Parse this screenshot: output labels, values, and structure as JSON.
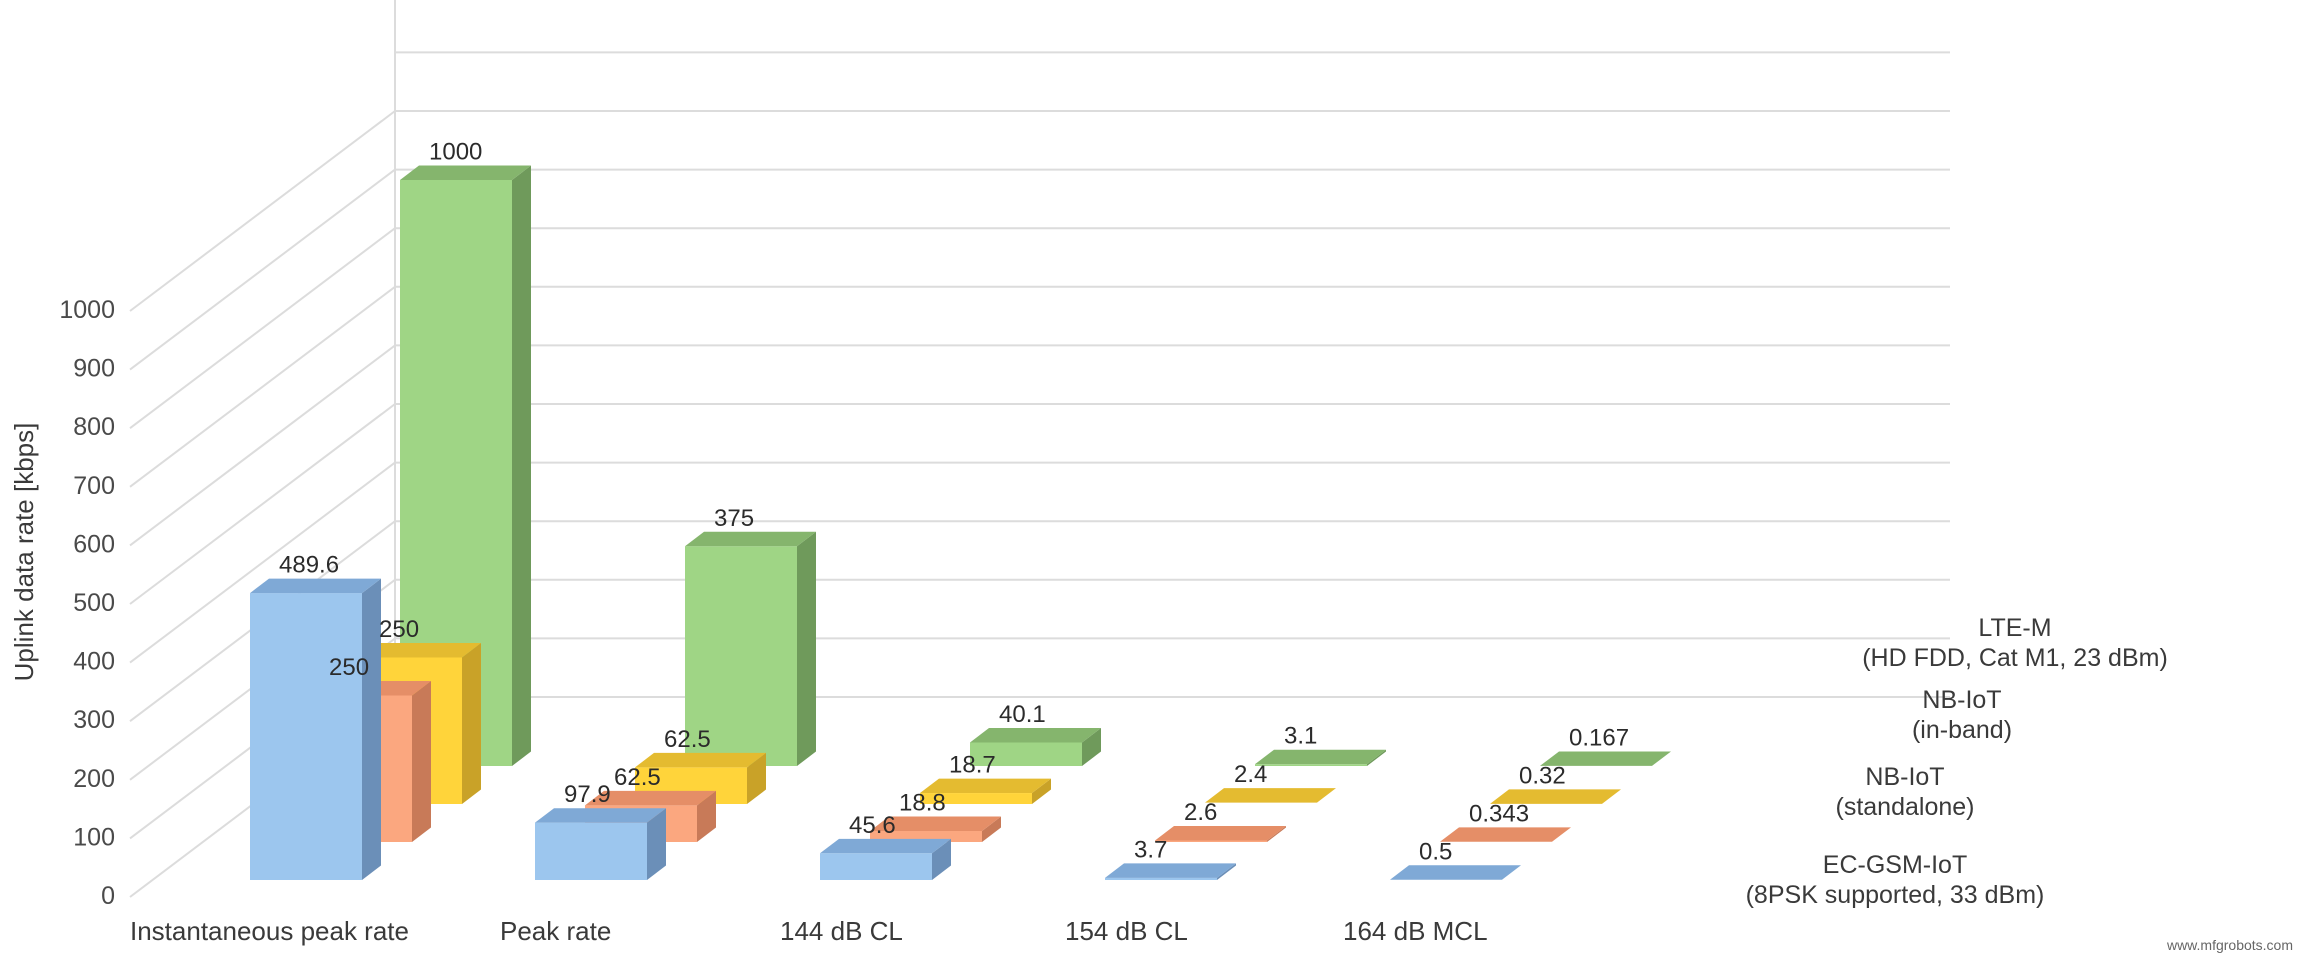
{
  "chart_data": {
    "type": "bar",
    "ylabel": "Uplink data rate [kbps]",
    "ylim": [
      0,
      1000
    ],
    "yticks": [
      "0",
      "100",
      "200",
      "300",
      "400",
      "500",
      "600",
      "700",
      "800",
      "900",
      "1000"
    ],
    "grid": true,
    "categories": [
      "Instantaneous peak rate",
      "Peak rate",
      "144 dB CL",
      "154 dB CL",
      "164 dB MCL"
    ],
    "series": [
      {
        "name_lines": [
          "EC-GSM-IoT",
          "(8PSK supported, 33 dBm)"
        ],
        "values": [
          489.6,
          97.9,
          45.6,
          3.7,
          0.5
        ],
        "labels": [
          "489.6",
          "97.9",
          "45.6",
          "3.7",
          "0.5"
        ]
      },
      {
        "name_lines": [
          "NB-IoT",
          "(standalone)"
        ],
        "values": [
          250,
          62.5,
          18.8,
          2.6,
          0.343
        ],
        "labels": [
          "250",
          "62.5",
          "18.8",
          "2.6",
          "0.343"
        ]
      },
      {
        "name_lines": [
          "NB-IoT",
          "(in-band)"
        ],
        "values": [
          250,
          62.5,
          18.7,
          2.4,
          0.32
        ],
        "labels": [
          "250",
          "62.5",
          "18.7",
          "2.4",
          "0.32"
        ]
      },
      {
        "name_lines": [
          "LTE-M",
          "(HD FDD, Cat M1, 23 dBm)"
        ],
        "values": [
          1000,
          375,
          40.1,
          3.1,
          0.167
        ],
        "labels": [
          "1000",
          "375",
          "40.1",
          "3.1",
          "0.167"
        ]
      }
    ],
    "colors": {
      "series": [
        {
          "front": "#9cc6ee",
          "side": "#6b8fb8",
          "top": "#7fa9d6"
        },
        {
          "front": "#fba77f",
          "side": "#c87a58",
          "top": "#e58e67"
        },
        {
          "front": "#ffd43a",
          "side": "#c9a228",
          "top": "#e4bb30"
        },
        {
          "front": "#9fd585",
          "side": "#6f9a5b",
          "top": "#85b56d"
        }
      ],
      "grid": "#dcdcdc"
    }
  },
  "watermark": "www.mfgrobots.com"
}
